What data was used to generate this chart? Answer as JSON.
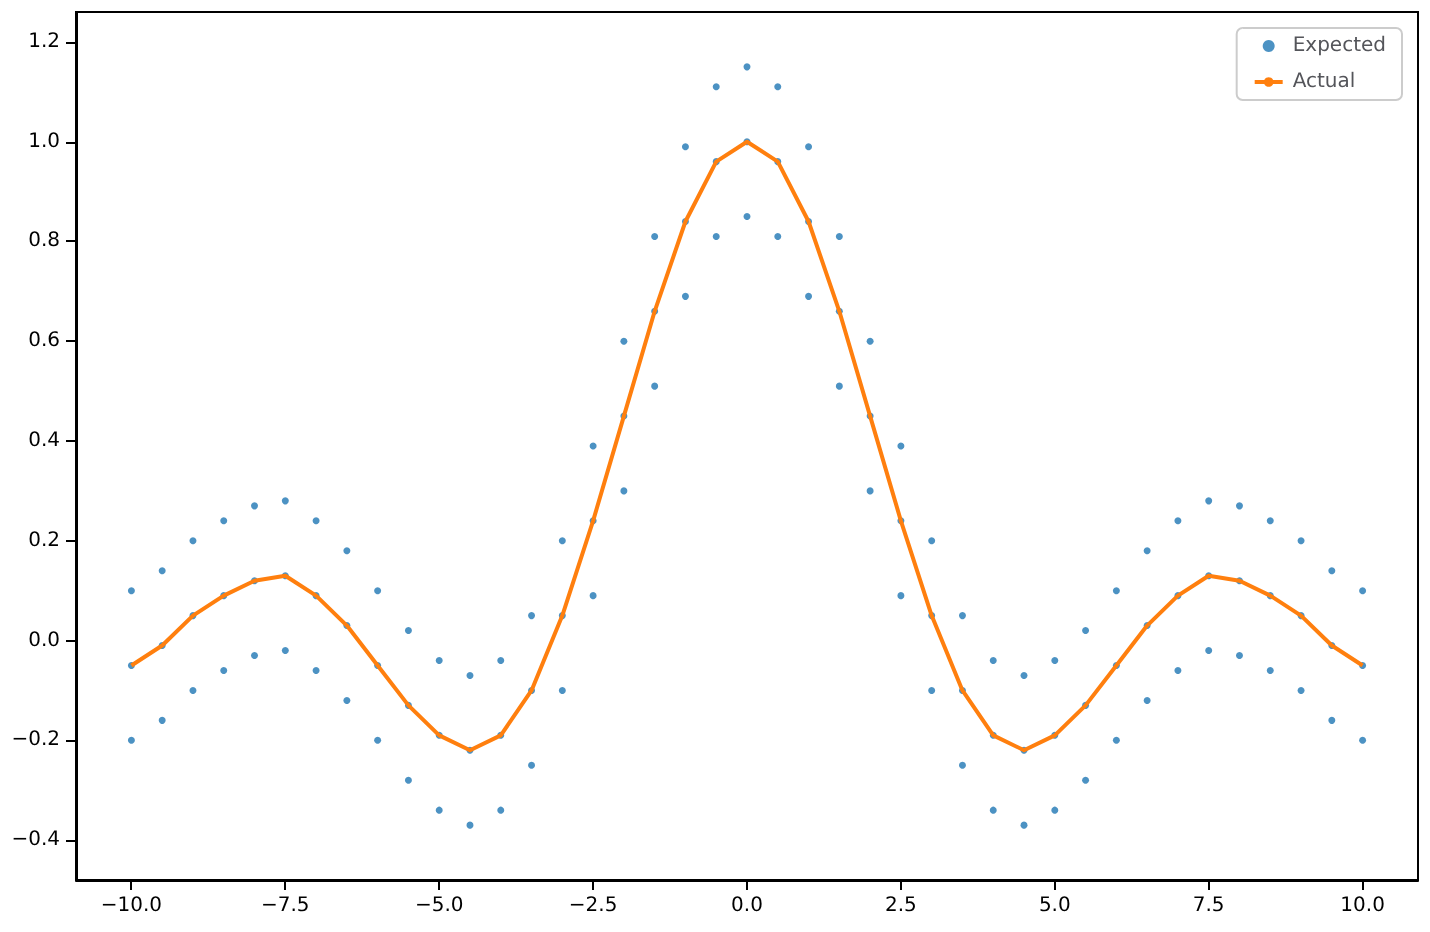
{
  "chart_data": {
    "type": "scatter",
    "xlim": [
      -10.9,
      10.9
    ],
    "ylim": [
      -0.48,
      1.26
    ],
    "xticks": [
      {
        "value": -10,
        "label": "−10.0"
      },
      {
        "value": -7.5,
        "label": "−7.5"
      },
      {
        "value": -5,
        "label": "−5.0"
      },
      {
        "value": -2.5,
        "label": "−2.5"
      },
      {
        "value": 0,
        "label": "0.0"
      },
      {
        "value": 2.5,
        "label": "2.5"
      },
      {
        "value": 5,
        "label": "5.0"
      },
      {
        "value": 7.5,
        "label": "7.5"
      },
      {
        "value": 10,
        "label": "10.0"
      }
    ],
    "yticks": [
      {
        "value": -0.4,
        "label": "−0.4"
      },
      {
        "value": -0.2,
        "label": "−0.2"
      },
      {
        "value": 0,
        "label": "0.0"
      },
      {
        "value": 0.2,
        "label": "0.2"
      },
      {
        "value": 0.4,
        "label": "0.4"
      },
      {
        "value": 0.6,
        "label": "0.6"
      },
      {
        "value": 0.8,
        "label": "0.8"
      },
      {
        "value": 1,
        "label": "1.0"
      },
      {
        "value": 1.2,
        "label": "1.2"
      }
    ],
    "grid": false,
    "legend": "top right",
    "series": [
      {
        "name": "Expected",
        "type": "scatter",
        "color": "#1f77b4",
        "marker": "circle",
        "x": [
          -10,
          -10,
          -10,
          -9.5,
          -9.5,
          -9.5,
          -9,
          -9,
          -9,
          -8.5,
          -8.5,
          -8.5,
          -8,
          -8,
          -8,
          -7.5,
          -7.5,
          -7.5,
          -7,
          -7,
          -7,
          -6.5,
          -6.5,
          -6.5,
          -6,
          -6,
          -6,
          -5.5,
          -5.5,
          -5.5,
          -5,
          -5,
          -5,
          -4.5,
          -4.5,
          -4.5,
          -4,
          -4,
          -4,
          -3.5,
          -3.5,
          -3.5,
          -3,
          -3,
          -3,
          -2.5,
          -2.5,
          -2.5,
          -2,
          -2,
          -2,
          -1.5,
          -1.5,
          -1.5,
          -1,
          -1,
          -1,
          -0.5,
          -0.5,
          -0.5,
          0,
          0,
          0,
          0.5,
          0.5,
          0.5,
          1,
          1,
          1,
          1.5,
          1.5,
          1.5,
          2,
          2,
          2,
          2.5,
          2.5,
          2.5,
          3,
          3,
          3,
          3.5,
          3.5,
          3.5,
          4,
          4,
          4,
          4.5,
          4.5,
          4.5,
          5,
          5,
          5,
          5.5,
          5.5,
          5.5,
          6,
          6,
          6,
          6.5,
          6.5,
          6.5,
          7,
          7,
          7,
          7.5,
          7.5,
          7.5,
          8,
          8,
          8,
          8.5,
          8.5,
          8.5,
          9,
          9,
          9,
          9.5,
          9.5,
          9.5,
          10,
          10,
          10
        ],
        "values": [
          0.1,
          -0.05,
          -0.2,
          0.14,
          -0.01,
          -0.16,
          0.2,
          0.05,
          -0.1,
          0.24,
          0.09,
          -0.06,
          0.27,
          0.12,
          -0.03,
          0.28,
          0.13,
          -0.02,
          0.24,
          0.09,
          -0.06,
          0.18,
          0.03,
          -0.12,
          0.1,
          -0.05,
          -0.2,
          0.02,
          -0.13,
          -0.28,
          -0.04,
          -0.19,
          -0.34,
          -0.07,
          -0.22,
          -0.37,
          -0.04,
          -0.19,
          -0.34,
          0.05,
          -0.1,
          -0.25,
          0.2,
          0.05,
          -0.1,
          0.39,
          0.24,
          0.09,
          0.6,
          0.45,
          0.3,
          0.81,
          0.66,
          0.51,
          0.99,
          0.84,
          0.69,
          1.11,
          0.96,
          0.81,
          1.15,
          1.0,
          0.85,
          1.11,
          0.96,
          0.81,
          0.99,
          0.84,
          0.69,
          0.81,
          0.66,
          0.51,
          0.6,
          0.45,
          0.3,
          0.39,
          0.24,
          0.09,
          0.2,
          0.05,
          -0.1,
          0.05,
          -0.1,
          -0.25,
          -0.04,
          -0.19,
          -0.34,
          -0.07,
          -0.22,
          -0.37,
          -0.04,
          -0.19,
          -0.34,
          0.02,
          -0.13,
          -0.28,
          0.1,
          -0.05,
          -0.2,
          0.18,
          0.03,
          -0.12,
          0.24,
          0.09,
          -0.06,
          0.28,
          0.13,
          -0.02,
          0.27,
          0.12,
          -0.03,
          0.24,
          0.09,
          -0.06,
          0.2,
          0.05,
          -0.1,
          0.14,
          -0.01,
          -0.16,
          0.1,
          -0.05,
          -0.2
        ]
      },
      {
        "name": "Actual",
        "type": "line",
        "color": "#ff7f0e",
        "marker": "none",
        "x": [
          -10,
          -9.5,
          -9,
          -8.5,
          -8,
          -7.5,
          -7,
          -6.5,
          -6,
          -5.5,
          -5,
          -4.5,
          -4,
          -3.5,
          -3,
          -2.5,
          -2,
          -1.5,
          -1,
          -0.5,
          0,
          0.5,
          1,
          1.5,
          2,
          2.5,
          3,
          3.5,
          4,
          4.5,
          5,
          5.5,
          6,
          6.5,
          7,
          7.5,
          8,
          8.5,
          9,
          9.5,
          10
        ],
        "values": [
          -0.05,
          -0.01,
          0.05,
          0.09,
          0.12,
          0.13,
          0.09,
          0.03,
          -0.05,
          -0.13,
          -0.19,
          -0.22,
          -0.19,
          -0.1,
          0.05,
          0.24,
          0.45,
          0.66,
          0.84,
          0.96,
          1.0,
          0.96,
          0.84,
          0.66,
          0.45,
          0.24,
          0.05,
          -0.1,
          -0.19,
          -0.22,
          -0.19,
          -0.13,
          -0.05,
          0.03,
          0.09,
          0.13,
          0.12,
          0.09,
          0.05,
          -0.01,
          -0.05
        ]
      }
    ]
  }
}
